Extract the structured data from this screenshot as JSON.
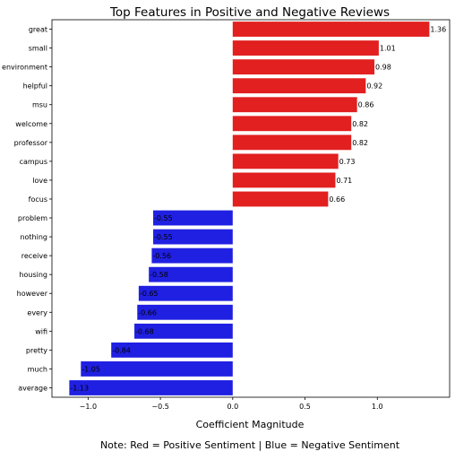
{
  "chart_data": {
    "type": "bar",
    "orientation": "horizontal",
    "title": "Top Features in Positive and Negative Reviews",
    "xlabel": "Coefficient Magnitude",
    "ylabel": "",
    "note": "Note: Red = Positive Sentiment | Blue = Negative Sentiment",
    "xlim": [
      -1.25,
      1.5
    ],
    "xticks": [
      -1.0,
      -0.5,
      0.0,
      0.5,
      1.0
    ],
    "xtick_labels": [
      "−1.0",
      "−0.5",
      "0.0",
      "0.5",
      "1.0"
    ],
    "grid": false,
    "legend": "none",
    "colors": {
      "positive": "#e22020",
      "negative": "#2020e2"
    },
    "categories": [
      "great",
      "small",
      "environment",
      "helpful",
      "msu",
      "welcome",
      "professor",
      "campus",
      "love",
      "focus",
      "problem",
      "nothing",
      "receive",
      "housing",
      "however",
      "every",
      "wifi",
      "pretty",
      "much",
      "average"
    ],
    "values": [
      1.36,
      1.01,
      0.98,
      0.92,
      0.86,
      0.82,
      0.82,
      0.73,
      0.71,
      0.66,
      -0.55,
      -0.55,
      -0.56,
      -0.58,
      -0.65,
      -0.66,
      -0.68,
      -0.84,
      -1.05,
      -1.13
    ],
    "value_labels": [
      "1.36",
      "1.01",
      "0.98",
      "0.92",
      "0.86",
      "0.82",
      "0.82",
      "0.73",
      "0.71",
      "0.66",
      "-0.55",
      "-0.55",
      "-0.56",
      "-0.58",
      "-0.65",
      "-0.66",
      "-0.68",
      "-0.84",
      "-1.05",
      "-1.13"
    ]
  }
}
